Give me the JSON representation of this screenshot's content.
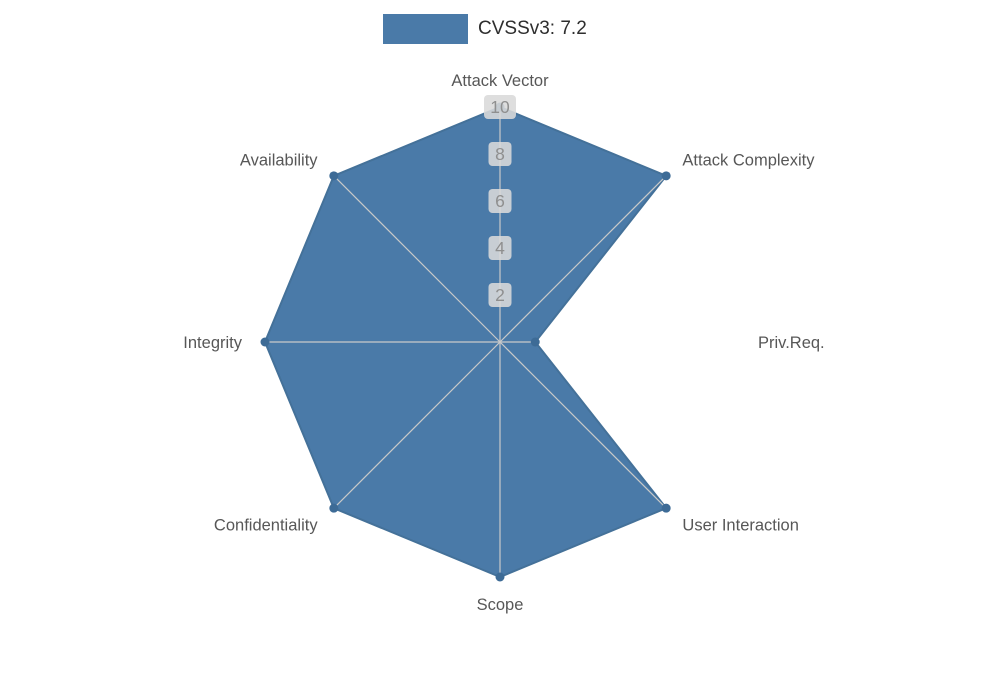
{
  "legend": {
    "label": "CVSSv3: 7.2"
  },
  "chart_data": {
    "type": "radar",
    "title": "CVSSv3: 7.2",
    "categories": [
      "Attack Vector",
      "Attack Complexity",
      "Priv.Req.",
      "User Interaction",
      "Scope",
      "Confidentiality",
      "Integrity",
      "Availability"
    ],
    "values": [
      10,
      10,
      1.5,
      10,
      10,
      10,
      10,
      10
    ],
    "ticks": [
      2,
      4,
      6,
      8,
      10
    ],
    "rmax": 10,
    "fill_color": "#4a7aa8",
    "edge_color": "#447199",
    "marker_color": "#3d6b96",
    "grid_color": "#c9c9c9",
    "tick_text_color": "#8f8f8f",
    "tick_box_color": "#d9d9d9",
    "label_color": "#575757"
  }
}
